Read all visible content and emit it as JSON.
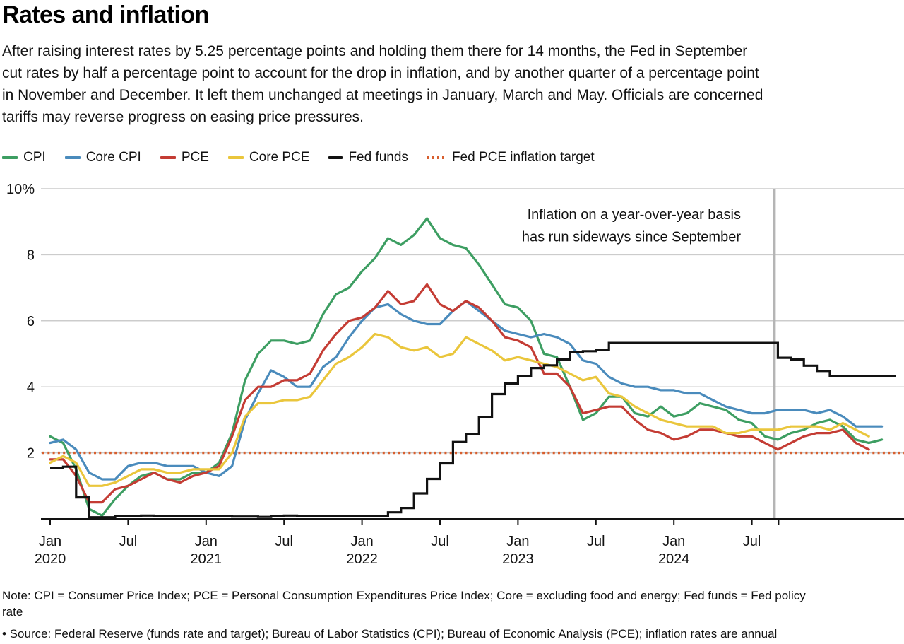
{
  "header": {
    "title": "Rates and inflation",
    "description_lines": [
      "After raising interest rates by 5.25 percentage points and holding them there for 14 months, the Fed in September",
      "cut rates by half a percentage point to account for the drop in inflation, and by another quarter of a percentage point",
      "in November and December. It left them unchanged at meetings in January, March and May. Officials are concerned",
      "tariffs may reverse progress on easing price pressures."
    ]
  },
  "legend": {
    "items": [
      {
        "label": "CPI",
        "color": "#3d9e62",
        "swatch": "line"
      },
      {
        "label": "Core CPI",
        "color": "#4a8bbc",
        "swatch": "line"
      },
      {
        "label": "PCE",
        "color": "#c43c34",
        "swatch": "line"
      },
      {
        "label": "Core PCE",
        "color": "#eac63c",
        "swatch": "line"
      },
      {
        "label": "Fed funds",
        "color": "#121212",
        "swatch": "step"
      },
      {
        "label": "Fed PCE inflation target",
        "color": "#d85f2e",
        "swatch": "dotted"
      }
    ]
  },
  "chart_data": {
    "type": "line",
    "title": "Rates and inflation",
    "x_unit": "month",
    "x_start_label": "Jan 2020",
    "ylim": [
      0,
      10
    ],
    "grid": true,
    "legend_position": "top",
    "yticks": [
      {
        "value": 10,
        "label": "10%"
      },
      {
        "value": 8,
        "label": "8"
      },
      {
        "value": 6,
        "label": "6"
      },
      {
        "value": 4,
        "label": "4"
      },
      {
        "value": 2,
        "label": "2"
      }
    ],
    "xticks": [
      {
        "month": 0,
        "label": "Jan",
        "year": "2020"
      },
      {
        "month": 6,
        "label": "Jul"
      },
      {
        "month": 12,
        "label": "Jan",
        "year": "2021"
      },
      {
        "month": 18,
        "label": "Jul"
      },
      {
        "month": 24,
        "label": "Jan",
        "year": "2022"
      },
      {
        "month": 30,
        "label": "Jul"
      },
      {
        "month": 36,
        "label": "Jan",
        "year": "2023"
      },
      {
        "month": 42,
        "label": "Jul"
      },
      {
        "month": 48,
        "label": "Jan",
        "year": "2024"
      },
      {
        "month": 54,
        "label": "Jul"
      },
      {
        "month": 56,
        "label": ""
      }
    ],
    "annotation": {
      "lines": [
        "Inflation on a year-over-year basis",
        "has run sideways since September"
      ]
    },
    "event_line": {
      "month": 56
    },
    "target_line": {
      "label": "Fed PCE inflation target",
      "value": 2,
      "color": "#d85f2e"
    },
    "series": [
      {
        "name": "CPI",
        "color": "#3d9e62",
        "render": "line",
        "values": [
          2.5,
          2.3,
          1.5,
          0.3,
          0.1,
          0.6,
          1.0,
          1.3,
          1.4,
          1.2,
          1.2,
          1.4,
          1.4,
          1.7,
          2.6,
          4.2,
          5.0,
          5.4,
          5.4,
          5.3,
          5.4,
          6.2,
          6.8,
          7.0,
          7.5,
          7.9,
          8.5,
          8.3,
          8.6,
          9.1,
          8.5,
          8.3,
          8.2,
          7.7,
          7.1,
          6.5,
          6.4,
          6.0,
          5.0,
          4.9,
          4.0,
          3.0,
          3.2,
          3.7,
          3.7,
          3.2,
          3.1,
          3.4,
          3.1,
          3.2,
          3.5,
          3.4,
          3.3,
          3.0,
          2.9,
          2.5,
          2.4,
          2.6,
          2.7,
          2.9,
          3.0,
          2.8,
          2.4,
          2.3,
          2.4
        ]
      },
      {
        "name": "Core CPI",
        "color": "#4a8bbc",
        "render": "line",
        "values": [
          2.3,
          2.4,
          2.1,
          1.4,
          1.2,
          1.2,
          1.6,
          1.7,
          1.7,
          1.6,
          1.6,
          1.6,
          1.4,
          1.3,
          1.6,
          3.0,
          3.8,
          4.5,
          4.3,
          4.0,
          4.0,
          4.6,
          4.9,
          5.5,
          6.0,
          6.4,
          6.5,
          6.2,
          6.0,
          5.9,
          5.9,
          6.3,
          6.6,
          6.3,
          6.0,
          5.7,
          5.6,
          5.5,
          5.6,
          5.5,
          5.3,
          4.8,
          4.7,
          4.3,
          4.1,
          4.0,
          4.0,
          3.9,
          3.9,
          3.8,
          3.8,
          3.6,
          3.4,
          3.3,
          3.2,
          3.2,
          3.3,
          3.3,
          3.3,
          3.2,
          3.3,
          3.1,
          2.8,
          2.8,
          2.8
        ]
      },
      {
        "name": "PCE",
        "color": "#c43c34",
        "render": "line",
        "values": [
          1.8,
          1.8,
          1.3,
          0.5,
          0.5,
          0.9,
          1.0,
          1.2,
          1.4,
          1.2,
          1.1,
          1.3,
          1.4,
          1.6,
          2.5,
          3.6,
          4.0,
          4.0,
          4.2,
          4.2,
          4.4,
          5.1,
          5.6,
          6.0,
          6.1,
          6.4,
          6.9,
          6.5,
          6.6,
          7.1,
          6.5,
          6.3,
          6.6,
          6.4,
          6.0,
          5.5,
          5.4,
          5.2,
          4.4,
          4.4,
          4.0,
          3.2,
          3.3,
          3.4,
          3.4,
          3.0,
          2.7,
          2.6,
          2.4,
          2.5,
          2.7,
          2.7,
          2.6,
          2.5,
          2.5,
          2.3,
          2.1,
          2.3,
          2.5,
          2.6,
          2.6,
          2.7,
          2.3,
          2.1
        ]
      },
      {
        "name": "Core PCE",
        "color": "#eac63c",
        "render": "line",
        "values": [
          1.7,
          1.9,
          1.7,
          1.0,
          1.0,
          1.1,
          1.3,
          1.5,
          1.5,
          1.4,
          1.4,
          1.5,
          1.5,
          1.5,
          2.0,
          3.1,
          3.5,
          3.5,
          3.6,
          3.6,
          3.7,
          4.2,
          4.7,
          4.9,
          5.2,
          5.6,
          5.5,
          5.2,
          5.1,
          5.2,
          4.9,
          5.0,
          5.5,
          5.3,
          5.1,
          4.8,
          4.9,
          4.8,
          4.7,
          4.6,
          4.4,
          4.2,
          4.3,
          3.8,
          3.7,
          3.4,
          3.2,
          3.0,
          2.9,
          2.8,
          2.8,
          2.8,
          2.6,
          2.6,
          2.7,
          2.7,
          2.7,
          2.8,
          2.8,
          2.8,
          2.7,
          2.9,
          2.7,
          2.5
        ]
      },
      {
        "name": "Fed funds",
        "color": "#121212",
        "render": "step",
        "values": [
          1.55,
          1.58,
          0.65,
          0.05,
          0.05,
          0.08,
          0.09,
          0.1,
          0.09,
          0.09,
          0.09,
          0.09,
          0.09,
          0.08,
          0.07,
          0.07,
          0.06,
          0.08,
          0.1,
          0.09,
          0.08,
          0.08,
          0.08,
          0.08,
          0.08,
          0.08,
          0.2,
          0.33,
          0.77,
          1.21,
          1.68,
          2.33,
          2.56,
          3.08,
          3.78,
          4.1,
          4.33,
          4.57,
          4.65,
          4.83,
          5.06,
          5.08,
          5.12,
          5.33,
          5.33,
          5.33,
          5.33,
          5.33,
          5.33,
          5.33,
          5.33,
          5.33,
          5.33,
          5.33,
          5.33,
          5.33,
          4.88,
          4.83,
          4.64,
          4.48,
          4.33,
          4.33,
          4.33,
          4.33,
          4.33,
          4.33
        ]
      }
    ]
  },
  "notes": {
    "note_lines": [
      "Note: CPI = Consumer Price Index; PCE = Personal Consumption Expenditures Price Index; Core = excluding food and energy; Fed funds = Fed policy",
      "rate"
    ],
    "source_line": "• Source: Federal Reserve (funds rate and target); Bureau of Labor Statistics (CPI); Bureau of Economic Analysis (PCE); inflation rates are annual"
  }
}
